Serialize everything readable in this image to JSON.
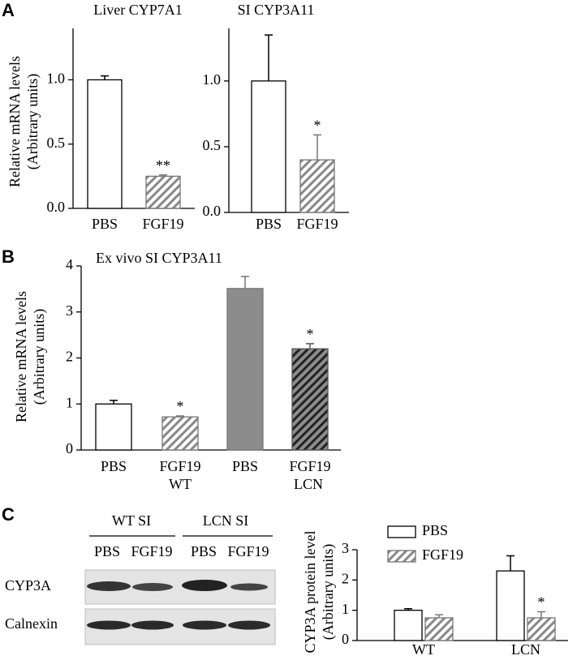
{
  "panel_labels": [
    "A",
    "B",
    "C"
  ],
  "chart_data": [
    {
      "type": "bar",
      "title": "Liver CYP7A1",
      "ylabel": [
        "Relative mRNA levels",
        "(Arbitrary units)"
      ],
      "categories": [
        "PBS",
        "FGF19"
      ],
      "values": [
        1.0,
        0.25
      ],
      "errors": [
        0.03,
        0.01
      ],
      "significance": [
        null,
        "**"
      ],
      "bar_styles": [
        {
          "fill": "#ffffff",
          "stroke": "#000000"
        },
        {
          "fill": "#ffffff",
          "hatch": "#888888",
          "stroke": "#777777"
        }
      ],
      "ylim": [
        0,
        1.4
      ],
      "yticks": [
        {
          "value": 0,
          "label": "0.0"
        },
        0.5,
        {
          "value": 1,
          "label": "1.0"
        }
      ]
    },
    {
      "type": "bar",
      "title": "SI CYP3A11",
      "categories": [
        "PBS",
        "FGF19"
      ],
      "values": [
        1.0,
        0.4
      ],
      "errors": [
        0.35,
        0.19
      ],
      "significance": [
        null,
        "*"
      ],
      "bar_styles": [
        {
          "fill": "#ffffff",
          "stroke": "#000000"
        },
        {
          "fill": "#ffffff",
          "hatch": "#888888",
          "stroke": "#777777"
        }
      ],
      "ylim": [
        0,
        1.4
      ],
      "yticks": [
        {
          "value": 0,
          "label": "0.0"
        },
        0.5,
        {
          "value": 1,
          "label": "1.0"
        }
      ]
    },
    {
      "type": "bar",
      "title": "Ex vivo SI CYP3A11",
      "ylabel": [
        "Relative mRNA levels",
        "(Arbitrary units)"
      ],
      "categories": [
        "PBS",
        "FGF19",
        "PBS",
        "FGF19"
      ],
      "group_labels": [
        "WT",
        "LCN"
      ],
      "values": [
        1.0,
        0.72,
        3.51,
        2.2
      ],
      "errors": [
        0.08,
        0.02,
        0.26,
        0.11
      ],
      "significance": [
        null,
        "*",
        null,
        "*"
      ],
      "bar_styles": [
        {
          "fill": "#ffffff",
          "stroke": "#000000"
        },
        {
          "fill": "#ffffff",
          "hatch": "#888888",
          "stroke": "#777777"
        },
        {
          "fill": "#8c8c8c",
          "stroke": "#777777"
        },
        {
          "fill": "#8c8c8c",
          "hatch": "#222222",
          "stroke": "#555555"
        }
      ],
      "ylim": [
        0,
        4
      ],
      "yticks": [
        0,
        1,
        2,
        3,
        4
      ]
    },
    {
      "type": "grouped_bar",
      "ylabel": [
        "CYP3A protein level",
        "(Arbitrary units)"
      ],
      "categories": [
        "WT",
        "LCN"
      ],
      "series": [
        {
          "name": "PBS",
          "fill": "#ffffff",
          "stroke": "#000000",
          "values": [
            1.0,
            2.3
          ],
          "errors": [
            0.05,
            0.5
          ]
        },
        {
          "name": "FGF19",
          "fill": "#ffffff",
          "hatch": "#888888",
          "stroke": "#777777",
          "values": [
            0.75,
            0.75
          ],
          "errors": [
            0.1,
            0.2
          ],
          "significance": [
            null,
            "*"
          ]
        }
      ],
      "ylim": [
        0,
        3
      ],
      "yticks": [
        0,
        1,
        2,
        3
      ],
      "legend": "top-left"
    }
  ],
  "blot": {
    "groups": [
      "WT SI",
      "LCN SI"
    ],
    "lanes": [
      "PBS",
      "FGF19",
      "PBS",
      "FGF19"
    ],
    "rows": [
      "CYP3A",
      "Calnexin"
    ]
  }
}
